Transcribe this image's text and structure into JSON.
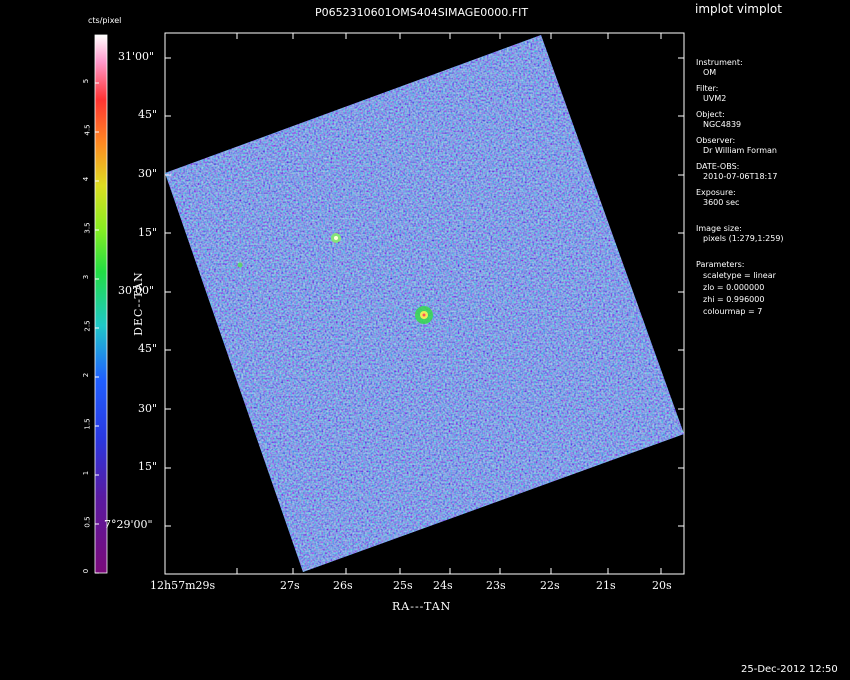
{
  "window": {
    "app_title": "implot vimplot",
    "image_title": "P0652310601OMS404SIMAGE0000.FIT",
    "timestamp": "25-Dec-2012 12:50"
  },
  "colorbar": {
    "label": "cts/pixel",
    "ticks": [
      "0",
      "0.5",
      "1",
      "1.5",
      "2",
      "2.5",
      "3",
      "3.5",
      "4",
      "4.5",
      "5"
    ]
  },
  "axes": {
    "xlabel": "RA---TAN",
    "ylabel": "DEC--TAN",
    "x_ticks": [
      "12h57m29s",
      "27s",
      "26s",
      "25s",
      "24s",
      "23s",
      "22s",
      "21s",
      "20s"
    ],
    "y_ticks": [
      "31'00\"",
      "45\"",
      "30\"",
      "15\"",
      "30'00\"",
      "45\"",
      "30\"",
      "15\"",
      "7°29'00\""
    ]
  },
  "info": {
    "instrument_label": "Instrument:",
    "instrument_value": "OM",
    "filter_label": "Filter:",
    "filter_value": "UVM2",
    "object_label": "Object:",
    "object_value": "NGC4839",
    "observer_label": "Observer:",
    "observer_value": "Dr William Forman",
    "date_label": "DATE-OBS:",
    "date_value": "2010-07-06T18:17",
    "exposure_label": "Exposure:",
    "exposure_value": "3600 sec",
    "size_label": "Image size:",
    "size_value": "pixels (1:279,1:259)",
    "params_label": "Parameters:",
    "scaletype": "scaletype = linear",
    "zlo": "zlo = 0.000000",
    "zhi": "zhi = 0.996000",
    "colourmap": "colourmap =   7"
  },
  "colors": {
    "background": "#000000",
    "axes": "#ffffff",
    "image_base": "#2233dd",
    "image_noise_1": "#5a1a9a",
    "image_noise_2": "#22c8c8",
    "image_noise_3": "#33dd44"
  }
}
